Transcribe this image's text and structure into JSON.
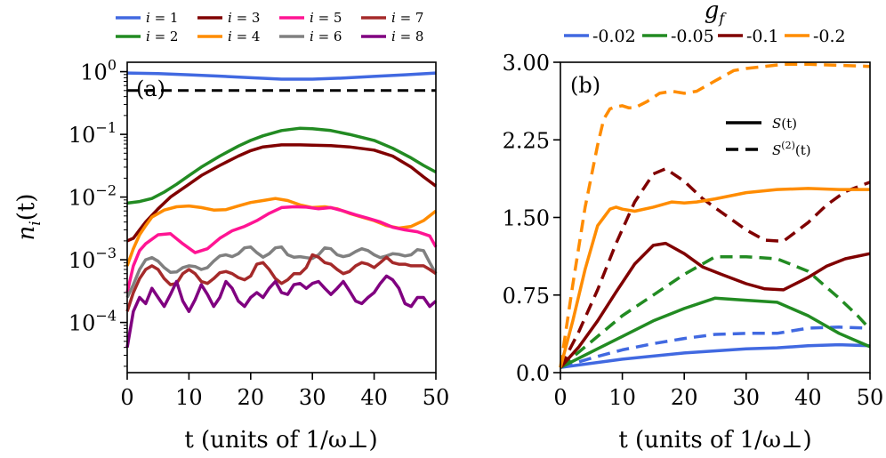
{
  "chart_data": [
    {
      "type": "line",
      "panel_label": "(a)",
      "xlabel": "t (units of 1/ω⊥)",
      "ylabel": "n_i(t)",
      "ylabel_base": "n",
      "ylabel_sub": "i",
      "ylabel_arg": "(t)",
      "yscale": "log",
      "xlim": [
        0,
        50
      ],
      "ylim_log10": [
        -4.8,
        0.15
      ],
      "x_ticks": [
        0,
        10,
        20,
        30,
        40,
        50
      ],
      "x_tick_labels": [
        "0",
        "10",
        "20",
        "30",
        "40",
        "50"
      ],
      "y_ticks_log10": [
        0,
        -1,
        -2,
        -3,
        -4
      ],
      "y_tick_labels": [
        {
          "base": "10",
          "exp": "0"
        },
        {
          "base": "10",
          "exp": "−1"
        },
        {
          "base": "10",
          "exp": "−2"
        },
        {
          "base": "10",
          "exp": "−3"
        },
        {
          "base": "10",
          "exp": "−4"
        }
      ],
      "hline": {
        "value": 0.5,
        "style": "dashed",
        "color": "#000000"
      },
      "legend_position": "top",
      "series": [
        {
          "name": "i = 1",
          "color": "#4169E1",
          "x": [
            0,
            5,
            10,
            15,
            20,
            25,
            30,
            35,
            40,
            45,
            50
          ],
          "y": [
            0.95,
            0.93,
            0.89,
            0.85,
            0.8,
            0.76,
            0.76,
            0.79,
            0.84,
            0.89,
            0.95
          ]
        },
        {
          "name": "i = 2",
          "color": "#228B22",
          "x": [
            0,
            2,
            4,
            6,
            8,
            10,
            12,
            15,
            18,
            20,
            22,
            25,
            28,
            30,
            33,
            36,
            40,
            43,
            46,
            48,
            50
          ],
          "y": [
            0.008,
            0.0085,
            0.0095,
            0.012,
            0.016,
            0.022,
            0.03,
            0.045,
            0.065,
            0.08,
            0.095,
            0.115,
            0.125,
            0.123,
            0.115,
            0.1,
            0.08,
            0.06,
            0.042,
            0.032,
            0.025
          ]
        },
        {
          "name": "i = 3",
          "color": "#800000",
          "x": [
            0,
            1,
            2,
            3,
            5,
            7,
            10,
            12,
            15,
            18,
            20,
            22,
            25,
            28,
            30,
            33,
            36,
            40,
            43,
            46,
            48,
            50
          ],
          "y": [
            0.002,
            0.0022,
            0.003,
            0.004,
            0.0065,
            0.01,
            0.016,
            0.022,
            0.032,
            0.045,
            0.055,
            0.063,
            0.068,
            0.068,
            0.067,
            0.066,
            0.063,
            0.056,
            0.045,
            0.03,
            0.021,
            0.015
          ]
        },
        {
          "name": "i = 4",
          "color": "#FF8C00",
          "x": [
            0,
            1,
            2,
            3,
            4,
            6,
            8,
            10,
            12,
            14,
            16,
            18,
            20,
            22,
            24,
            26,
            28,
            30,
            32,
            34,
            36,
            38,
            40,
            42,
            44,
            46,
            48,
            50
          ],
          "y": [
            0.0008,
            0.0015,
            0.0025,
            0.0035,
            0.0048,
            0.0062,
            0.007,
            0.0072,
            0.0068,
            0.0062,
            0.0063,
            0.0072,
            0.0082,
            0.0088,
            0.0095,
            0.0088,
            0.0075,
            0.0068,
            0.007,
            0.0065,
            0.0055,
            0.0048,
            0.0042,
            0.0035,
            0.0032,
            0.0034,
            0.0042,
            0.006
          ]
        },
        {
          "name": "i = 5",
          "color": "#FF1493",
          "x": [
            0,
            1,
            2,
            3,
            5,
            7,
            9,
            11,
            13,
            15,
            17,
            19,
            21,
            23,
            25,
            27,
            29,
            31,
            33,
            35,
            37,
            39,
            41,
            43,
            45,
            47,
            49,
            50
          ],
          "y": [
            0.0003,
            0.0008,
            0.0014,
            0.0018,
            0.0025,
            0.0026,
            0.0018,
            0.0013,
            0.0015,
            0.0022,
            0.0029,
            0.0034,
            0.0042,
            0.0055,
            0.0068,
            0.007,
            0.0069,
            0.0065,
            0.0068,
            0.006,
            0.0052,
            0.0046,
            0.004,
            0.0033,
            0.003,
            0.0028,
            0.0024,
            0.0016
          ]
        },
        {
          "name": "i = 6",
          "color": "#808080",
          "x": [
            0,
            1,
            2,
            3,
            4,
            5,
            6,
            7,
            8,
            9,
            10,
            11,
            12,
            13,
            14,
            15,
            16,
            17,
            18,
            19,
            20,
            21,
            22,
            23,
            24,
            25,
            26,
            27,
            28,
            29,
            30,
            31,
            32,
            33,
            34,
            35,
            36,
            37,
            38,
            39,
            40,
            41,
            42,
            43,
            44,
            45,
            46,
            47,
            48,
            49,
            50
          ],
          "y": [
            0.00025,
            0.0004,
            0.0007,
            0.001,
            0.00108,
            0.00095,
            0.00075,
            0.00063,
            0.00064,
            0.00075,
            0.0008,
            0.00078,
            0.0007,
            0.00075,
            0.00095,
            0.00115,
            0.0012,
            0.00112,
            0.00125,
            0.00155,
            0.0016,
            0.0013,
            0.0011,
            0.00125,
            0.00155,
            0.0016,
            0.0012,
            0.0011,
            0.00112,
            0.00108,
            0.00105,
            0.0012,
            0.00155,
            0.0015,
            0.0012,
            0.00112,
            0.00118,
            0.00135,
            0.0015,
            0.0014,
            0.0012,
            0.00108,
            0.00115,
            0.00125,
            0.00122,
            0.00115,
            0.0012,
            0.00145,
            0.0014,
            0.0009,
            0.0006
          ]
        },
        {
          "name": "i = 7",
          "color": "#A52A2A",
          "x": [
            0,
            1,
            2,
            3,
            4,
            5,
            6,
            7,
            8,
            9,
            10,
            11,
            12,
            13,
            14,
            15,
            16,
            17,
            18,
            19,
            20,
            21,
            22,
            23,
            24,
            25,
            26,
            27,
            28,
            29,
            30,
            31,
            32,
            33,
            34,
            35,
            36,
            37,
            38,
            39,
            40,
            41,
            42,
            43,
            44,
            45,
            46,
            47,
            48,
            49,
            50
          ],
          "y": [
            0.00015,
            0.0003,
            0.0005,
            0.0007,
            0.0008,
            0.0007,
            0.0005,
            0.0004,
            0.00042,
            0.0006,
            0.0007,
            0.0006,
            0.00045,
            0.00042,
            0.0005,
            0.00062,
            0.00065,
            0.0006,
            0.00052,
            0.00048,
            0.00055,
            0.00085,
            0.0009,
            0.0007,
            0.0005,
            0.00042,
            0.00048,
            0.0006,
            0.0006,
            0.00075,
            0.0012,
            0.0011,
            0.0009,
            0.00085,
            0.0007,
            0.0006,
            0.00065,
            0.0008,
            0.0009,
            0.00085,
            0.00075,
            0.0009,
            0.0011,
            0.0009,
            0.00085,
            0.00085,
            0.0008,
            0.0008,
            0.0008,
            0.0007,
            0.0006
          ]
        },
        {
          "name": "i = 8",
          "color": "#800080",
          "x": [
            0,
            1,
            2,
            3,
            4,
            5,
            6,
            7,
            8,
            9,
            10,
            11,
            12,
            13,
            14,
            15,
            16,
            17,
            18,
            19,
            20,
            21,
            22,
            23,
            24,
            25,
            26,
            27,
            28,
            29,
            30,
            31,
            32,
            33,
            34,
            35,
            36,
            37,
            38,
            39,
            40,
            41,
            42,
            43,
            44,
            45,
            46,
            47,
            48,
            49,
            50
          ],
          "y": [
            4e-05,
            0.00015,
            0.00025,
            0.0002,
            0.00035,
            0.00025,
            0.00018,
            0.00028,
            0.00045,
            0.00022,
            0.00015,
            0.00023,
            0.0004,
            0.00028,
            0.00018,
            0.00025,
            0.00045,
            0.00035,
            0.00022,
            0.00018,
            0.00025,
            0.0003,
            0.00025,
            0.00035,
            0.00045,
            0.0003,
            0.00028,
            0.0004,
            0.00042,
            0.00035,
            0.00042,
            0.00045,
            0.00035,
            0.00028,
            0.00035,
            0.00045,
            0.00032,
            0.00022,
            0.0002,
            0.00025,
            0.0003,
            0.00042,
            0.00055,
            0.00048,
            0.00035,
            0.0002,
            0.00018,
            0.00025,
            0.00025,
            0.00018,
            0.00022
          ]
        }
      ]
    },
    {
      "type": "line",
      "panel_label": "(b)",
      "xlabel": "t (units of 1/ω⊥)",
      "ylabel": "",
      "xlim": [
        0,
        50
      ],
      "ylim": [
        0,
        3.0
      ],
      "x_ticks": [
        0,
        10,
        20,
        30,
        40,
        50
      ],
      "x_tick_labels": [
        "0",
        "10",
        "20",
        "30",
        "40",
        "50"
      ],
      "y_ticks": [
        0,
        0.75,
        1.5,
        2.25,
        3.0
      ],
      "y_tick_labels": [
        "0.0",
        "0.75",
        "1.50",
        "2.25",
        "3.00"
      ],
      "legend_title": "g_f",
      "legend_title_base": "g",
      "legend_title_sub": "f",
      "legend_position": "top",
      "style_legend": [
        {
          "label_base": "S",
          "label_sup": "",
          "label_arg": "(t)",
          "style": "solid"
        },
        {
          "label_base": "S",
          "label_sup": "(2)",
          "label_arg": "(t)",
          "style": "dashed"
        }
      ],
      "series": [
        {
          "name": "-0.02",
          "color": "#4169E1",
          "S_x": [
            0,
            10,
            20,
            30,
            35,
            40,
            45,
            50
          ],
          "S_y": [
            0.05,
            0.13,
            0.19,
            0.23,
            0.24,
            0.26,
            0.27,
            0.26
          ],
          "S2_x": [
            0,
            5,
            10,
            15,
            20,
            25,
            30,
            35,
            40,
            45,
            50
          ],
          "S2_y": [
            0.05,
            0.14,
            0.22,
            0.28,
            0.33,
            0.37,
            0.38,
            0.38,
            0.43,
            0.44,
            0.43
          ]
        },
        {
          "name": "-0.05",
          "color": "#228B22",
          "S_x": [
            0,
            5,
            10,
            15,
            20,
            25,
            30,
            35,
            40,
            45,
            50
          ],
          "S_y": [
            0.05,
            0.2,
            0.35,
            0.5,
            0.62,
            0.72,
            0.7,
            0.68,
            0.55,
            0.38,
            0.25
          ],
          "S2_x": [
            0,
            5,
            10,
            15,
            20,
            25,
            30,
            35,
            40,
            45,
            48,
            50
          ],
          "S2_y": [
            0.05,
            0.3,
            0.55,
            0.75,
            0.95,
            1.12,
            1.12,
            1.1,
            0.98,
            0.72,
            0.55,
            0.42
          ]
        },
        {
          "name": "-0.1",
          "color": "#800000",
          "S_x": [
            0,
            3,
            6,
            9,
            12,
            15,
            17,
            20,
            23,
            26,
            30,
            33,
            36,
            40,
            43,
            46,
            50
          ],
          "S_y": [
            0.05,
            0.25,
            0.5,
            0.78,
            1.05,
            1.23,
            1.25,
            1.15,
            1.02,
            0.95,
            0.86,
            0.81,
            0.8,
            0.92,
            1.03,
            1.1,
            1.15
          ],
          "S2_x": [
            0,
            3,
            6,
            9,
            12,
            15,
            17,
            20,
            23,
            26,
            30,
            33,
            36,
            40,
            43,
            46,
            50
          ],
          "S2_y": [
            0.05,
            0.4,
            0.8,
            1.25,
            1.65,
            1.92,
            1.97,
            1.85,
            1.68,
            1.55,
            1.38,
            1.28,
            1.27,
            1.45,
            1.62,
            1.75,
            1.84
          ]
        },
        {
          "name": "-0.2",
          "color": "#FF8C00",
          "S_x": [
            0,
            2,
            4,
            6,
            8,
            9,
            10,
            12,
            15,
            18,
            20,
            22,
            25,
            30,
            35,
            40,
            45,
            50
          ],
          "S_y": [
            0.05,
            0.5,
            1.0,
            1.42,
            1.58,
            1.6,
            1.58,
            1.56,
            1.6,
            1.65,
            1.64,
            1.65,
            1.68,
            1.74,
            1.77,
            1.78,
            1.77,
            1.77
          ],
          "S2_x": [
            0,
            2,
            4,
            6,
            7,
            8,
            9,
            10,
            11,
            12,
            14,
            16,
            18,
            20,
            22,
            25,
            28,
            30,
            33,
            36,
            40,
            45,
            50
          ],
          "S2_y": [
            0.05,
            0.85,
            1.6,
            2.2,
            2.45,
            2.55,
            2.57,
            2.58,
            2.56,
            2.56,
            2.62,
            2.7,
            2.72,
            2.7,
            2.72,
            2.82,
            2.92,
            2.94,
            2.96,
            2.98,
            2.98,
            2.97,
            2.96
          ]
        }
      ]
    }
  ]
}
